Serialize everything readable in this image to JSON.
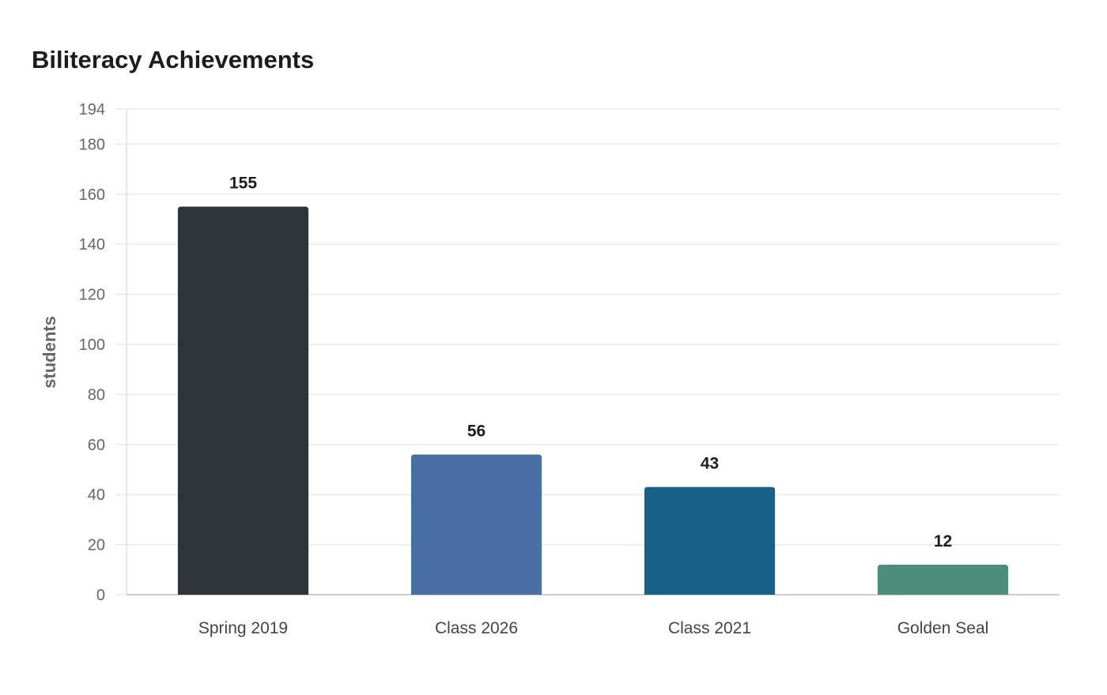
{
  "chart_data": {
    "type": "bar",
    "title": "Biliteracy Achievements",
    "xlabel": "",
    "ylabel": "students",
    "categories": [
      "Spring 2019",
      "Class 2026",
      "Class 2021",
      "Golden Seal"
    ],
    "values": [
      155,
      56,
      43,
      12
    ],
    "colors": [
      "#2e3538",
      "#4a6fa5",
      "#176087",
      "#4e8d7c"
    ],
    "ylim": [
      0,
      194
    ],
    "yticks": [
      0,
      20,
      40,
      60,
      80,
      100,
      120,
      140,
      160,
      180,
      194
    ],
    "grid": true,
    "legend": "none"
  }
}
